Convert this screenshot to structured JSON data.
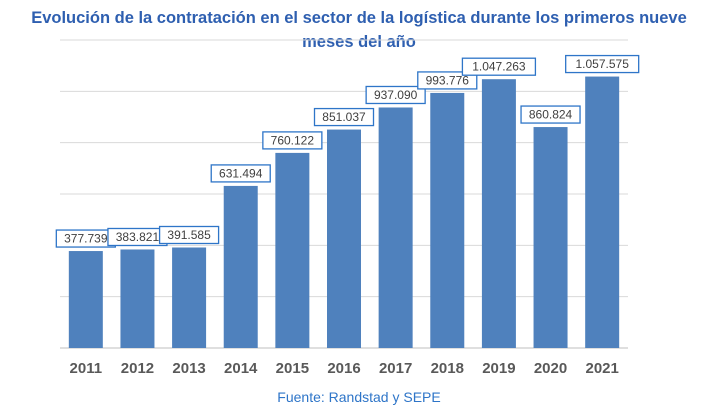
{
  "chart_data": {
    "type": "bar",
    "title_lines": [
      "Evolución de la contratación en el sector de la logística durante los primeros nueve",
      "meses del año"
    ],
    "categories": [
      "2011",
      "2012",
      "2013",
      "2014",
      "2015",
      "2016",
      "2017",
      "2018",
      "2019",
      "2020",
      "2021"
    ],
    "values": [
      377739,
      383821,
      391585,
      631494,
      760122,
      851037,
      937090,
      993776,
      1047263,
      860824,
      1057575
    ],
    "value_labels": [
      "377.739",
      "383.821",
      "391.585",
      "631.494",
      "760.122",
      "851.037",
      "937.090",
      "993.776",
      "1.047.263",
      "860.824",
      "1.057.575"
    ],
    "xlabel": "",
    "ylabel": "",
    "ylim": [
      0,
      1200000
    ],
    "grid": true,
    "legend": "none",
    "source": "Fuente: Randstad y SEPE",
    "colors": {
      "bar": "#4f81bd",
      "label_border": "#2e75c8",
      "title": "#2e5fb0",
      "grid": "#d9d9d9"
    }
  }
}
